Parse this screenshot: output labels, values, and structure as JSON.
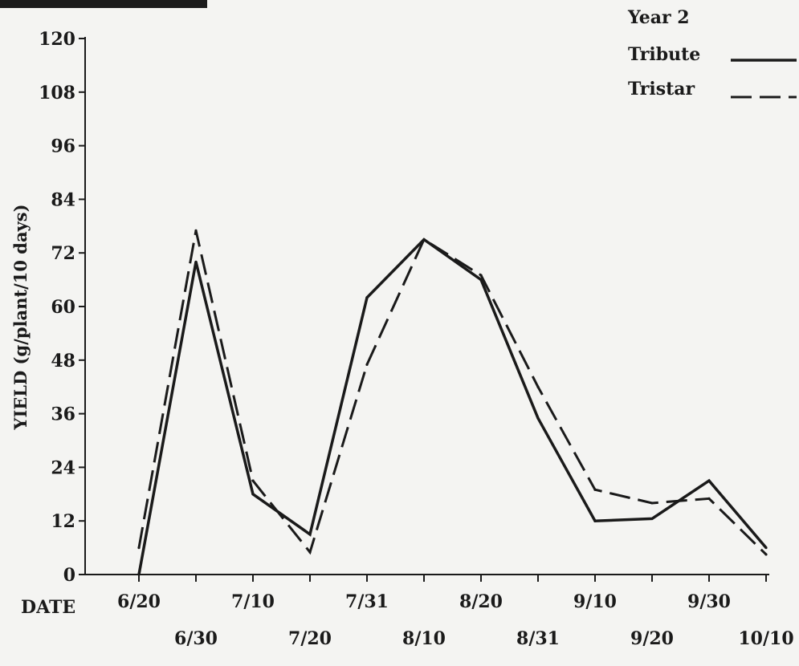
{
  "chart_data": {
    "type": "line",
    "ylabel": "YIELD (g/plant/10 days)",
    "xlabel": "DATE",
    "ylim": [
      0,
      120
    ],
    "yticks": [
      "0",
      "12",
      "24",
      "36",
      "48",
      "60",
      "72",
      "84",
      "96",
      "108",
      "120"
    ],
    "categories": [
      "6/20",
      "6/30",
      "7/10",
      "7/20",
      "7/31",
      "8/10",
      "8/20",
      "8/31",
      "9/10",
      "9/20",
      "9/30",
      "10/10"
    ],
    "legend_title": "Year 2",
    "legend_position": "top-right",
    "grid": false,
    "series": [
      {
        "name": "Tribute",
        "style": "solid",
        "color": "#1a1a1a",
        "values": [
          0,
          70,
          18,
          9,
          62,
          75,
          66,
          35,
          12,
          12.5,
          21,
          6
        ]
      },
      {
        "name": "Tristar",
        "style": "dashed",
        "color": "#1a1a1a",
        "values": [
          6,
          77,
          21,
          5,
          47,
          75,
          67,
          42,
          19,
          16,
          17,
          4.5
        ]
      }
    ]
  }
}
